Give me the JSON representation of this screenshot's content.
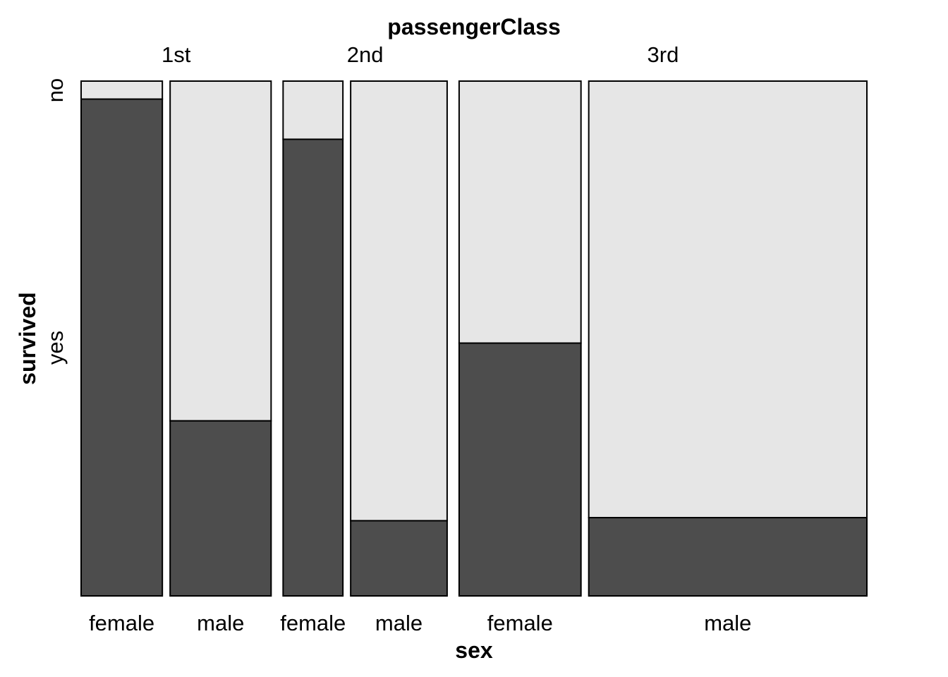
{
  "chart_data": {
    "type": "mosaic",
    "top_variable": "passengerClass",
    "bottom_variable": "sex",
    "left_variable": "survived",
    "classes": [
      "1st",
      "2nd",
      "3rd"
    ],
    "survival_levels": [
      "no",
      "yes"
    ],
    "cells": [
      {
        "passengerClass": "1st",
        "sex": "female",
        "label": "female",
        "count": 144,
        "survived_yes_fraction": 0.965
      },
      {
        "passengerClass": "1st",
        "sex": "male",
        "label": "male",
        "count": 179,
        "survived_yes_fraction": 0.34
      },
      {
        "passengerClass": "2nd",
        "sex": "female",
        "label": "female",
        "count": 106,
        "survived_yes_fraction": 0.887
      },
      {
        "passengerClass": "2nd",
        "sex": "male",
        "label": "male",
        "count": 171,
        "survived_yes_fraction": 0.146
      },
      {
        "passengerClass": "3rd",
        "sex": "female",
        "label": "female",
        "count": 216,
        "survived_yes_fraction": 0.491
      },
      {
        "passengerClass": "3rd",
        "sex": "male",
        "label": "male",
        "count": 493,
        "survived_yes_fraction": 0.152
      }
    ],
    "colors": {
      "yes": "#4d4d4d",
      "no": "#e6e6e6",
      "border": "#000000"
    }
  }
}
